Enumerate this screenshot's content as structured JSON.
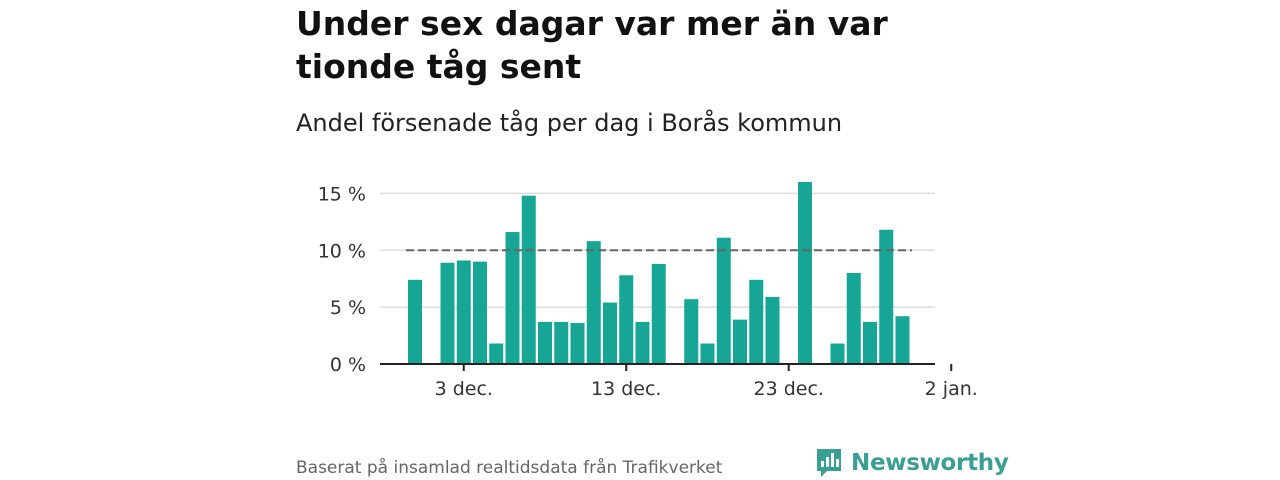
{
  "title": "Under sex dagar var mer än var tionde tåg sent",
  "subtitle": "Andel försenade tåg per dag i Borås kommun",
  "source": "Baserat på insamlad realtidsdata från Trafikverket",
  "logo": {
    "text": "Newsworthy",
    "icon": "newsworthy-logo-icon"
  },
  "colors": {
    "bar": "#17a595",
    "reference_line": "#666666",
    "grid": "#dddddd",
    "axis": "#222222",
    "brand": "#3a9e95"
  },
  "chart_data": {
    "type": "bar",
    "x_start": "2023-11-30",
    "x_labels": [
      {
        "day": 3,
        "label": "3 dec."
      },
      {
        "day": 13,
        "label": "13 dec."
      },
      {
        "day": 23,
        "label": "23 dec."
      },
      {
        "day": 33,
        "label": "2 jan."
      }
    ],
    "values": [
      7.4,
      null,
      8.9,
      9.1,
      9.0,
      1.8,
      11.6,
      14.8,
      3.7,
      3.7,
      3.6,
      10.8,
      5.4,
      7.8,
      3.7,
      8.8,
      null,
      5.7,
      1.8,
      11.1,
      3.9,
      7.4,
      5.9,
      null,
      16.0,
      null,
      1.8,
      8.0,
      3.7,
      11.8,
      4.2
    ],
    "y_ticks": [
      {
        "value": 0,
        "label": "0 %"
      },
      {
        "value": 5,
        "label": "5 %"
      },
      {
        "value": 10,
        "label": "10 %"
      },
      {
        "value": 15,
        "label": "15 %"
      }
    ],
    "ylim": [
      0,
      16
    ],
    "reference_line": 10,
    "grid": true
  }
}
